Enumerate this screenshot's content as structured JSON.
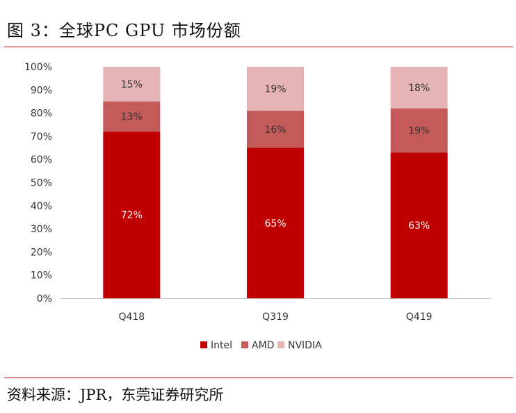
{
  "header": {
    "title": "图 3：全球PC GPU 市场份额"
  },
  "footer": {
    "source": "资料来源：JPR，东莞证券研究所"
  },
  "chart_data": {
    "type": "bar",
    "stacked": true,
    "categories": [
      "Q418",
      "Q319",
      "Q419"
    ],
    "series": [
      {
        "name": "Intel",
        "values": [
          72,
          65,
          63
        ],
        "color": "#c00000",
        "labels": [
          "72%",
          "65%",
          "63%"
        ]
      },
      {
        "name": "AMD",
        "values": [
          13,
          16,
          19
        ],
        "color": "#c55a5a",
        "labels": [
          "13%",
          "16%",
          "19%"
        ]
      },
      {
        "name": "NVIDIA",
        "values": [
          15,
          19,
          18
        ],
        "color": "#e6b4b4",
        "labels": [
          "15%",
          "19%",
          "18%"
        ]
      }
    ],
    "yticks": [
      "0%",
      "10%",
      "20%",
      "30%",
      "40%",
      "50%",
      "60%",
      "70%",
      "80%",
      "90%",
      "100%"
    ],
    "ylim": [
      0,
      100
    ],
    "legend_position": "bottom",
    "grid": false
  }
}
